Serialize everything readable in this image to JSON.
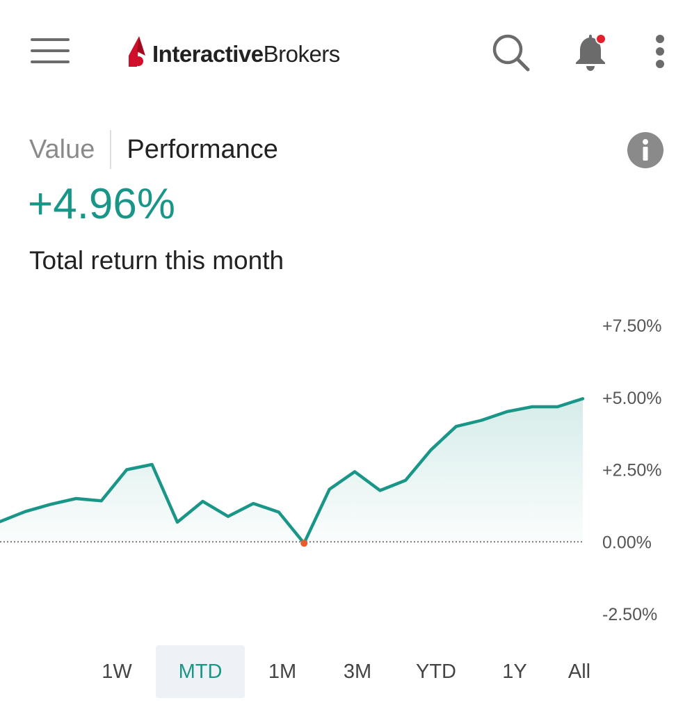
{
  "header": {
    "logo_bold": "Interactive",
    "logo_light": "Brokers",
    "icons": [
      "menu-icon",
      "search-icon",
      "bell-icon",
      "more-vert-icon"
    ],
    "notification_dot_color": "#e0202a"
  },
  "tabs": {
    "value_label": "Value",
    "performance_label": "Performance",
    "active": "Performance"
  },
  "summary": {
    "return_value": "+4.96%",
    "return_label": "Total return this month",
    "accent_color": "#1a9688"
  },
  "chart_data": {
    "type": "area",
    "y_ticks": [
      "+7.50%",
      "+5.00%",
      "+2.50%",
      "0.00%",
      "-2.50%"
    ],
    "ylim": [
      -2.5,
      7.5
    ],
    "baseline": 0,
    "series": [
      {
        "values": [
          0.7,
          1.05,
          1.3,
          1.5,
          1.42,
          2.5,
          2.68,
          0.68,
          1.4,
          0.88,
          1.33,
          1.03,
          -0.05,
          1.82,
          2.43,
          1.78,
          2.13,
          3.18,
          4.0,
          4.21,
          4.51,
          4.68,
          4.68,
          4.96
        ]
      }
    ],
    "line_color": "#1a9688",
    "min_marker_color": "#e85c2c",
    "grid": false
  },
  "periods": {
    "items": [
      "1W",
      "MTD",
      "1M",
      "3M",
      "YTD",
      "1Y",
      "All"
    ],
    "active": "MTD"
  }
}
